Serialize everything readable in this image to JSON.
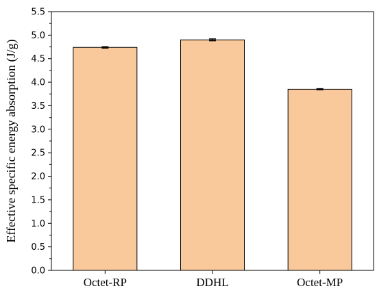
{
  "chart_data": {
    "type": "bar",
    "title": "",
    "xlabel": "",
    "ylabel": "Effective specific energy absorption (J/g)",
    "categories": [
      "Octet-RP",
      "DDHL",
      "Octet-MP"
    ],
    "values": [
      4.74,
      4.9,
      3.85
    ],
    "errors": [
      0.015,
      0.02,
      0.012
    ],
    "ylim": [
      0.0,
      5.5
    ],
    "yticks": [
      "0.0",
      "0.5",
      "1.0",
      "1.5",
      "2.0",
      "2.5",
      "3.0",
      "3.5",
      "4.0",
      "4.5",
      "5.0",
      "5.5"
    ],
    "grid": false,
    "legend": "none",
    "bar_color": "#f9c89b",
    "bar_edge_color": "#000000"
  }
}
